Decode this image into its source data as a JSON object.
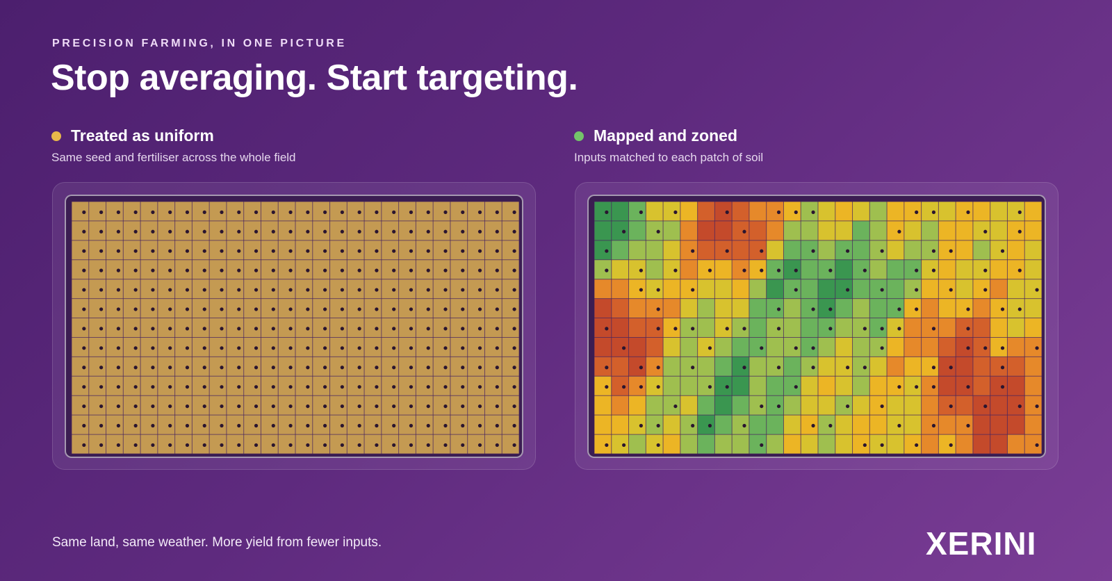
{
  "eyebrow": "PRECISION FARMING, IN ONE PICTURE",
  "headline": "Stop averaging. Start targeting.",
  "panels": [
    {
      "dot_color": "#e8b84a",
      "title": "Treated as uniform",
      "subtitle": "Same seed and fertiliser across the whole field"
    },
    {
      "dot_color": "#74c46a",
      "title": "Mapped and zoned",
      "subtitle": "Inputs matched to each patch of soil"
    }
  ],
  "footer": {
    "tagline": "Same land, same weather. More yield from fewer inputs.",
    "brand": "XERINI"
  },
  "colors": {
    "uniform_fill": "#c49a52",
    "grid_line": "#4a2560",
    "seed_dot": "#2a1530",
    "zone_palette": [
      "#3a9650",
      "#6bb35c",
      "#9fbf4f",
      "#d8c22e",
      "#ecb525",
      "#e6892a",
      "#d3602b",
      "#c44a2b"
    ]
  }
}
